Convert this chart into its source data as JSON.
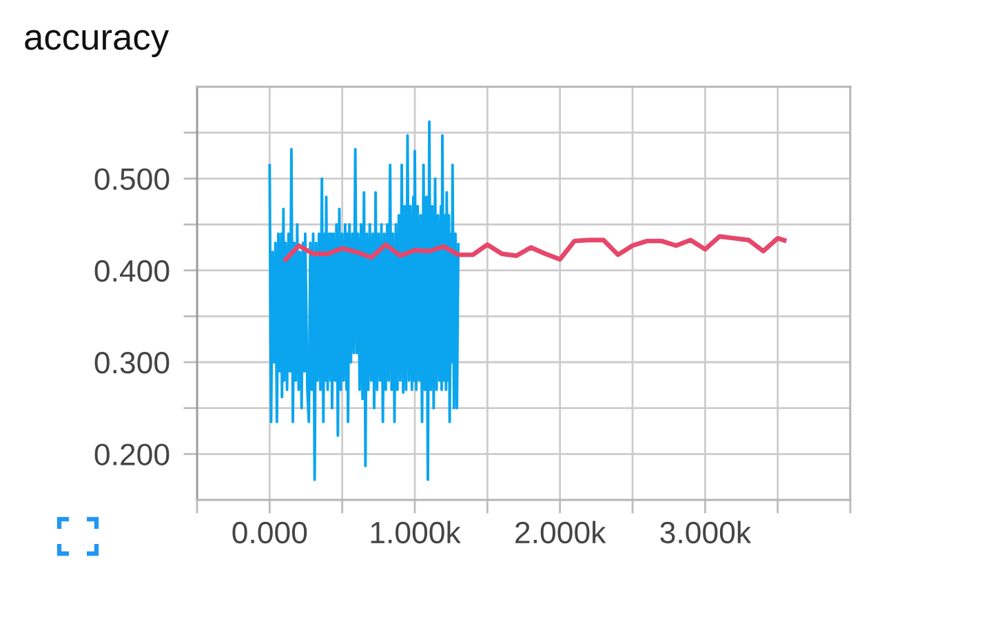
{
  "chart_data": {
    "type": "line",
    "title": "accuracy",
    "xlim": [
      -500,
      4000
    ],
    "ylim": [
      0.15,
      0.6
    ],
    "xticks": [
      {
        "value": -500,
        "label": null
      },
      {
        "value": 0,
        "label": "0.000"
      },
      {
        "value": 500,
        "label": null
      },
      {
        "value": 1000,
        "label": "1.000k"
      },
      {
        "value": 1500,
        "label": null
      },
      {
        "value": 2000,
        "label": "2.000k"
      },
      {
        "value": 2500,
        "label": null
      },
      {
        "value": 3000,
        "label": "3.000k"
      },
      {
        "value": 3500,
        "label": null
      },
      {
        "value": 4000,
        "label": null
      }
    ],
    "yticks": [
      {
        "value": 0.2,
        "label": "0.200"
      },
      {
        "value": 0.25,
        "label": null
      },
      {
        "value": 0.3,
        "label": "0.300"
      },
      {
        "value": 0.35,
        "label": null
      },
      {
        "value": 0.4,
        "label": "0.400"
      },
      {
        "value": 0.45,
        "label": null
      },
      {
        "value": 0.5,
        "label": "0.500"
      },
      {
        "value": 0.55,
        "label": null
      }
    ],
    "grid": true,
    "series": [
      {
        "color": "#0aa5ee",
        "x": [
          0,
          10,
          20,
          30,
          40,
          50,
          60,
          70,
          80,
          85,
          95,
          100,
          110,
          120,
          130,
          140,
          150,
          160,
          170,
          180,
          190,
          200,
          210,
          220,
          230,
          240,
          245,
          260,
          270,
          280,
          290,
          300,
          310,
          320,
          330,
          340,
          350,
          360,
          370,
          380,
          385,
          390,
          400,
          410,
          420,
          425,
          430,
          440,
          450,
          460,
          470,
          480,
          490,
          500,
          510,
          520,
          530,
          535,
          540,
          550,
          560,
          570,
          580,
          590,
          600,
          610,
          620,
          630,
          640,
          650,
          660,
          670,
          680,
          690,
          700,
          710,
          720,
          730,
          740,
          750,
          760,
          770,
          780,
          790,
          800,
          810,
          820,
          830,
          840,
          850,
          860,
          870,
          880,
          890,
          900,
          910,
          920,
          930,
          940,
          950,
          960,
          970,
          980,
          990,
          995,
          1000,
          1010,
          1020,
          1030,
          1040,
          1050,
          1060,
          1070,
          1080,
          1090,
          1100,
          1110,
          1120,
          1130,
          1140,
          1150,
          1160,
          1170,
          1180,
          1185,
          1190,
          1200,
          1210,
          1215,
          1220,
          1230,
          1235,
          1240,
          1250,
          1255,
          1260,
          1270,
          1280,
          1290,
          1300
        ],
        "values": [
          0.516,
          0.235,
          0.42,
          0.3,
          0.43,
          0.235,
          0.44,
          0.29,
          0.44,
          0.262,
          0.467,
          0.28,
          0.43,
          0.27,
          0.44,
          0.29,
          0.532,
          0.235,
          0.43,
          0.28,
          0.45,
          0.27,
          0.42,
          0.25,
          0.43,
          0.29,
          0.44,
          0.27,
          0.235,
          0.43,
          0.27,
          0.44,
          0.172,
          0.43,
          0.28,
          0.44,
          0.27,
          0.5,
          0.235,
          0.44,
          0.28,
          0.48,
          0.27,
          0.44,
          0.28,
          0.44,
          0.25,
          0.44,
          0.28,
          0.45,
          0.22,
          0.467,
          0.27,
          0.44,
          0.28,
          0.45,
          0.27,
          0.44,
          0.235,
          0.45,
          0.3,
          0.44,
          0.31,
          0.532,
          0.31,
          0.44,
          0.27,
          0.45,
          0.26,
          0.485,
          0.187,
          0.44,
          0.27,
          0.45,
          0.28,
          0.44,
          0.25,
          0.485,
          0.27,
          0.44,
          0.28,
          0.45,
          0.235,
          0.44,
          0.27,
          0.45,
          0.28,
          0.515,
          0.27,
          0.44,
          0.235,
          0.45,
          0.27,
          0.46,
          0.28,
          0.515,
          0.267,
          0.47,
          0.27,
          0.547,
          0.28,
          0.47,
          0.27,
          0.48,
          0.28,
          0.53,
          0.27,
          0.47,
          0.28,
          0.46,
          0.235,
          0.515,
          0.27,
          0.48,
          0.172,
          0.562,
          0.27,
          0.47,
          0.25,
          0.5,
          0.27,
          0.46,
          0.28,
          0.47,
          0.27,
          0.547,
          0.28,
          0.46,
          0.27,
          0.485,
          0.28,
          0.46,
          0.235,
          0.44,
          0.3,
          0.515,
          0.25,
          0.44,
          0.25,
          0.43
        ]
      },
      {
        "color": "#e6476a",
        "x": [
          100,
          200,
          300,
          400,
          500,
          600,
          700,
          800,
          900,
          1000,
          1100,
          1200,
          1300,
          1400,
          1500,
          1600,
          1700,
          1800,
          1900,
          2000,
          2100,
          2200,
          2300,
          2400,
          2500,
          2600,
          2700,
          2800,
          2900,
          3000,
          3100,
          3200,
          3300,
          3400,
          3500,
          3560
        ],
        "values": [
          0.41,
          0.427,
          0.418,
          0.418,
          0.424,
          0.42,
          0.414,
          0.428,
          0.416,
          0.422,
          0.421,
          0.426,
          0.417,
          0.417,
          0.428,
          0.418,
          0.416,
          0.425,
          0.418,
          0.412,
          0.432,
          0.433,
          0.433,
          0.417,
          0.427,
          0.432,
          0.432,
          0.427,
          0.433,
          0.423,
          0.437,
          0.435,
          0.433,
          0.421,
          0.435,
          0.432
        ]
      }
    ]
  }
}
